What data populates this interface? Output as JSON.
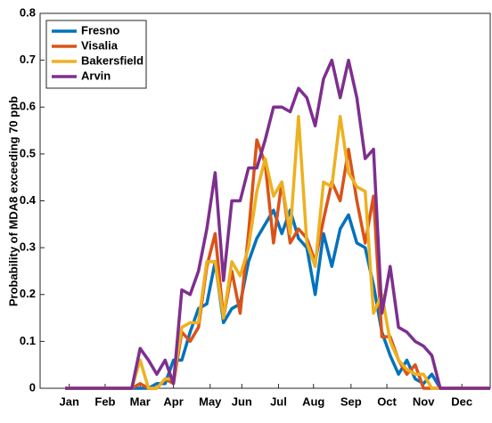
{
  "chart_data": {
    "type": "line",
    "ylabel": "Probability of MDA8 exceeding 70 ppb",
    "x": [
      1,
      2,
      3,
      4,
      5,
      6,
      7,
      8,
      9,
      10,
      11,
      12,
      13,
      14,
      15,
      16,
      17,
      18,
      19,
      20,
      21,
      22,
      23,
      24,
      25,
      26,
      27,
      28,
      29,
      30,
      31,
      32,
      33,
      34,
      35,
      36,
      37,
      38,
      39,
      40,
      41,
      42,
      43,
      44,
      45,
      46,
      47,
      48,
      49,
      50,
      51,
      52
    ],
    "xlim": [
      -2,
      52
    ],
    "xticks": [
      {
        "value": 1.5,
        "label": "Jan"
      },
      {
        "value": 5.8,
        "label": "Feb"
      },
      {
        "value": 10,
        "label": "Mar"
      },
      {
        "value": 14,
        "label": "Apr"
      },
      {
        "value": 18.4,
        "label": "May"
      },
      {
        "value": 22.2,
        "label": "Jun"
      },
      {
        "value": 26.6,
        "label": "Jul"
      },
      {
        "value": 30.8,
        "label": "Aug"
      },
      {
        "value": 35.3,
        "label": "Sep"
      },
      {
        "value": 39.6,
        "label": "Oct"
      },
      {
        "value": 44,
        "label": "Nov"
      },
      {
        "value": 48.6,
        "label": "Dec"
      }
    ],
    "ylim": [
      0,
      0.8
    ],
    "yticks": [
      0,
      0.1,
      0.2,
      0.3,
      0.4,
      0.5,
      0.6,
      0.7,
      0.8
    ],
    "legend": "upper left",
    "series": [
      {
        "name": "Fresno",
        "color": "#0072bd",
        "values": [
          0,
          0,
          0,
          0,
          0,
          0,
          0,
          0,
          0,
          0,
          0,
          0.01,
          0.01,
          0.06,
          0.06,
          0.12,
          0.17,
          0.18,
          0.27,
          0.14,
          0.17,
          0.18,
          0.27,
          0.32,
          0.35,
          0.38,
          0.33,
          0.38,
          0.32,
          0.3,
          0.2,
          0.33,
          0.26,
          0.34,
          0.37,
          0.31,
          0.3,
          0.22,
          0.12,
          0.07,
          0.03,
          0.06,
          0.02,
          0.01,
          0.03,
          0,
          0,
          0,
          0,
          0,
          0,
          0
        ]
      },
      {
        "name": "Visalia",
        "color": "#d95319",
        "values": [
          0,
          0,
          0,
          0,
          0,
          0,
          0,
          0,
          0,
          0.01,
          0,
          0,
          0.02,
          0.01,
          0.12,
          0.1,
          0.13,
          0.26,
          0.33,
          0.15,
          0.25,
          0.16,
          0.33,
          0.53,
          0.48,
          0.31,
          0.44,
          0.31,
          0.34,
          0.32,
          0.27,
          0.36,
          0.44,
          0.4,
          0.51,
          0.4,
          0.31,
          0.41,
          0.11,
          0.11,
          0.06,
          0.03,
          0.05,
          0,
          0,
          0,
          0,
          0,
          0,
          0,
          0,
          0
        ]
      },
      {
        "name": "Bakersfield",
        "color": "#edb120",
        "values": [
          0,
          0,
          0,
          0,
          0,
          0,
          0,
          0,
          0,
          0.06,
          0,
          0,
          0.02,
          0.02,
          0.13,
          0.14,
          0.14,
          0.27,
          0.27,
          0.15,
          0.27,
          0.24,
          0.3,
          0.42,
          0.49,
          0.41,
          0.44,
          0.33,
          0.58,
          0.31,
          0.26,
          0.44,
          0.43,
          0.58,
          0.46,
          0.43,
          0.42,
          0.16,
          0.2,
          0.1,
          0.06,
          0.04,
          0.03,
          0.03,
          0,
          0,
          0,
          0,
          0,
          0,
          0,
          0
        ]
      },
      {
        "name": "Arvin",
        "color": "#7e2f8e",
        "values": [
          0,
          0,
          0,
          0,
          0,
          0,
          0,
          0,
          0,
          0.085,
          0.06,
          0.03,
          0.06,
          0.01,
          0.21,
          0.2,
          0.25,
          0.34,
          0.46,
          0.23,
          0.4,
          0.4,
          0.47,
          0.47,
          0.53,
          0.6,
          0.6,
          0.59,
          0.64,
          0.62,
          0.56,
          0.66,
          0.7,
          0.62,
          0.7,
          0.62,
          0.49,
          0.51,
          0.16,
          0.26,
          0.13,
          0.12,
          0.1,
          0.09,
          0.07,
          0,
          0,
          0,
          0,
          0,
          0,
          0
        ]
      }
    ]
  }
}
